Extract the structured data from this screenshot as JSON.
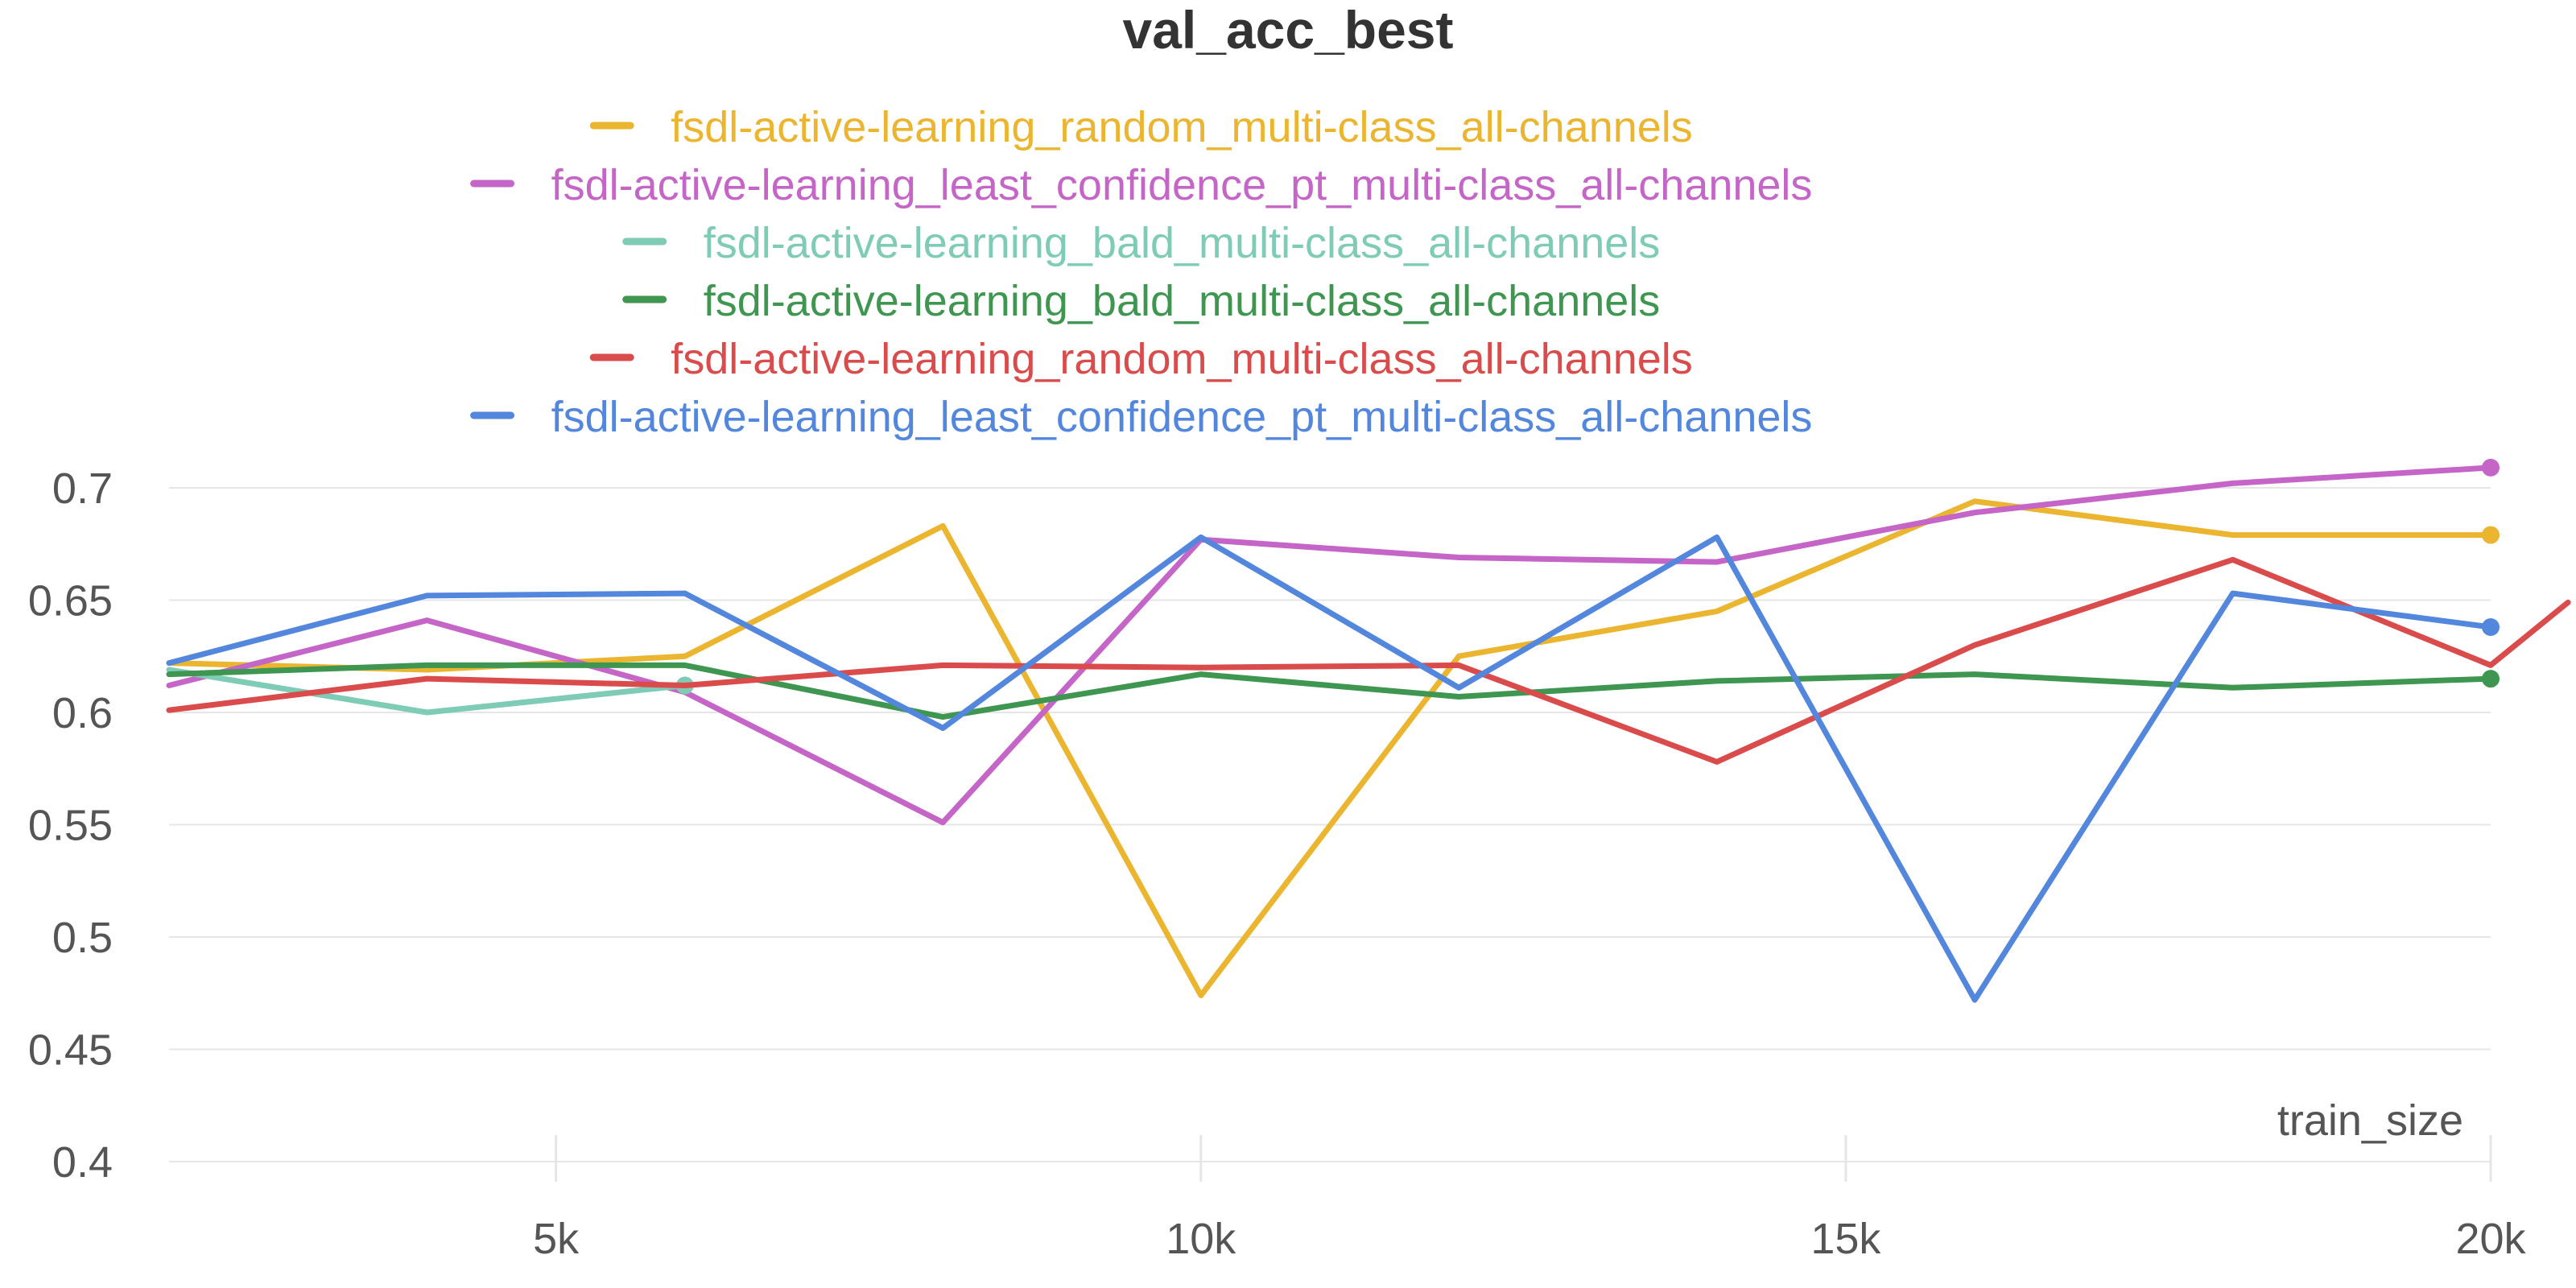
{
  "chart_data": {
    "type": "line",
    "title": "val_acc_best",
    "xlabel": "train_size",
    "ylabel": "",
    "xlim": [
      2000,
      20000
    ],
    "ylim": [
      0.4,
      0.725
    ],
    "x_ticks": [
      5000,
      10000,
      15000,
      20000
    ],
    "x_tick_labels": [
      "5k",
      "10k",
      "15k",
      "20k"
    ],
    "y_ticks": [
      0.4,
      0.45,
      0.5,
      0.55,
      0.6,
      0.65,
      0.7
    ],
    "y_tick_labels": [
      "0.4",
      "0.45",
      "0.5",
      "0.55",
      "0.6",
      "0.65",
      "0.7"
    ],
    "grid": true,
    "legend_position": "top-center",
    "series": [
      {
        "name": "fsdl-active-learning_random_multi-class_all-channels",
        "color": "#EBB52F",
        "x": [
          2000,
          4000,
          6000,
          8000,
          10000,
          12000,
          14000,
          16000,
          18000,
          20000
        ],
        "y": [
          0.622,
          0.619,
          0.625,
          0.683,
          0.474,
          0.625,
          0.645,
          0.694,
          0.679,
          0.679
        ],
        "end_marker": true
      },
      {
        "name": "fsdl-active-learning_least_confidence_pt_multi-class_all-channels",
        "color": "#C565C7",
        "x": [
          2000,
          4000,
          6000,
          8000,
          10000,
          12000,
          14000,
          16000,
          18000,
          20000
        ],
        "y": [
          0.612,
          0.641,
          0.609,
          0.551,
          0.677,
          0.669,
          0.667,
          0.689,
          0.702,
          0.709
        ],
        "end_marker": true
      },
      {
        "name": "fsdl-active-learning_bald_multi-class_all-channels",
        "color": "#7ECBB6",
        "x": [
          2000,
          4000,
          6000
        ],
        "y": [
          0.619,
          0.6,
          0.612
        ],
        "end_marker": true
      },
      {
        "name": "fsdl-active-learning_bald_multi-class_all-channels",
        "color": "#3E9651",
        "x": [
          2000,
          4000,
          6000,
          8000,
          10000,
          12000,
          14000,
          16000,
          18000,
          20000
        ],
        "y": [
          0.617,
          0.621,
          0.621,
          0.598,
          0.617,
          0.607,
          0.614,
          0.617,
          0.611,
          0.615
        ],
        "end_marker": true
      },
      {
        "name": "fsdl-active-learning_random_multi-class_all-channels",
        "color": "#DA4C4C",
        "x": [
          2000,
          4000,
          6000,
          8000,
          10000,
          12000,
          14000,
          16000,
          18000,
          20000,
          20600
        ],
        "y": [
          0.601,
          0.615,
          0.612,
          0.621,
          0.62,
          0.621,
          0.578,
          0.63,
          0.668,
          0.621,
          0.649
        ],
        "end_marker": false
      },
      {
        "name": "fsdl-active-learning_least_confidence_pt_multi-class_all-channels",
        "color": "#5387DD",
        "x": [
          2000,
          4000,
          6000,
          8000,
          10000,
          12000,
          14000,
          16000,
          18000,
          20000
        ],
        "y": [
          0.622,
          0.652,
          0.653,
          0.593,
          0.678,
          0.611,
          0.678,
          0.472,
          0.653,
          0.638
        ],
        "end_marker": true
      }
    ]
  }
}
